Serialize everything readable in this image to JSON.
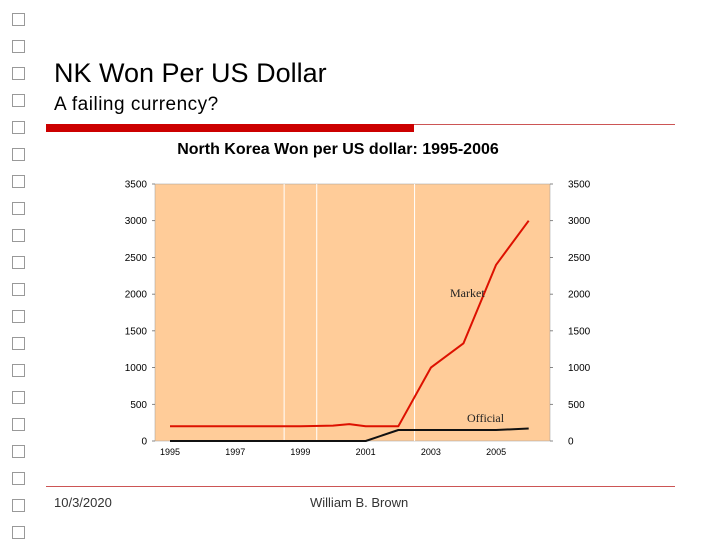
{
  "slide": {
    "title": "NK Won Per US Dollar",
    "subtitle": "A failing currency?",
    "footer_date": "10/3/2020",
    "footer_author": "William B. Brown"
  },
  "colors": {
    "accent_red": "#cc0000",
    "plot_background": "#ffcc99",
    "market_line": "#dd1100",
    "official_line": "#111111"
  },
  "chart_data": {
    "type": "line",
    "title": "North Korea Won per US dollar:  1995-2006",
    "x": [
      1995,
      1996,
      1997,
      1998,
      1999,
      2000,
      2001,
      2002,
      2003,
      2004,
      2005,
      2006
    ],
    "xticks": [
      "1995",
      "1997",
      "1999",
      "2001",
      "2003",
      "2005"
    ],
    "xlim": [
      1995,
      2006.5
    ],
    "yticks": [
      "0",
      "500",
      "1000",
      "1500",
      "2000",
      "2500",
      "3000",
      "3500"
    ],
    "ylim": [
      0,
      3500
    ],
    "y_axes": "left-and-right",
    "series": [
      {
        "name": "Market",
        "x": [
          1995,
          1996,
          1997,
          1998,
          1999,
          2000,
          2000.5,
          2001,
          2002,
          2003,
          2004,
          2005,
          2006
        ],
        "values": [
          200,
          200,
          200,
          200,
          200,
          210,
          230,
          200,
          200,
          1000,
          1330,
          2400,
          3000
        ]
      },
      {
        "name": "Official",
        "x": [
          1995,
          1996,
          1997,
          1998,
          1999,
          2000,
          2001,
          2002,
          2003,
          2004,
          2005,
          2006
        ],
        "values": [
          0,
          0,
          0,
          0,
          0,
          0,
          0,
          150,
          150,
          150,
          150,
          170
        ]
      }
    ],
    "vertical_gridlines": [
      1998.5,
      1999.5,
      2002.5
    ],
    "legend": "inline-labels"
  }
}
